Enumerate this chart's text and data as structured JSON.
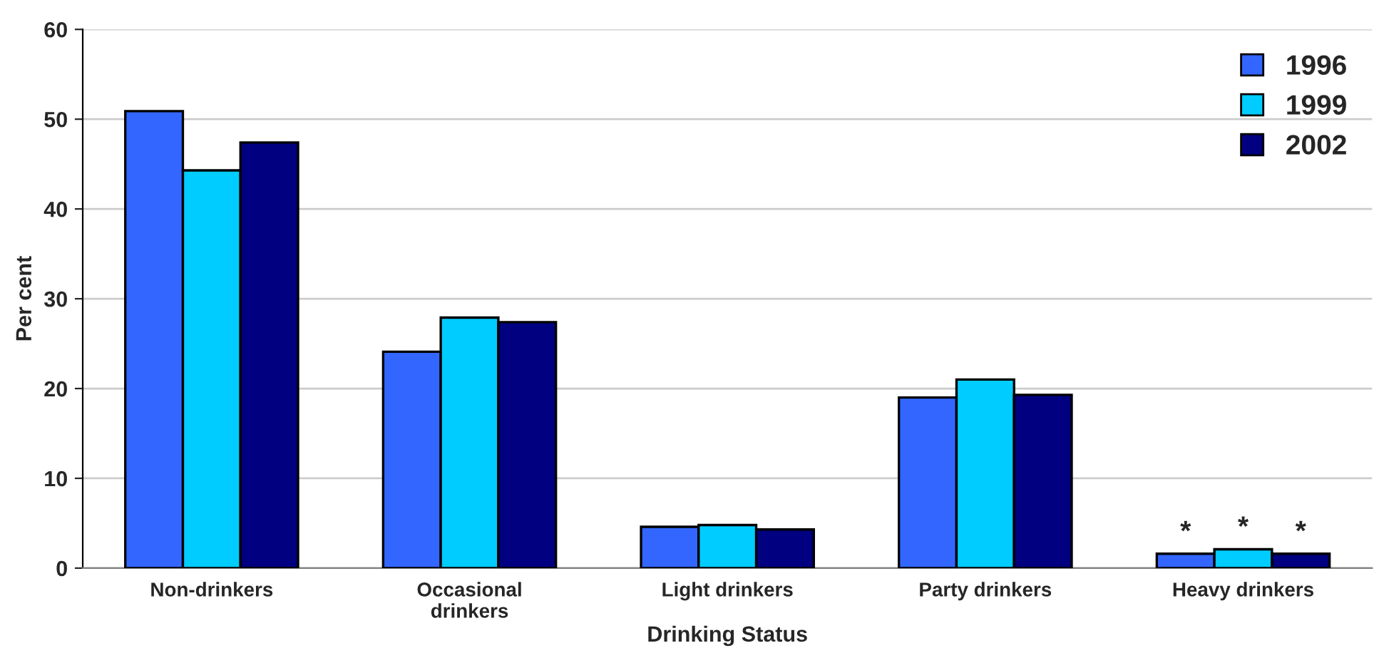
{
  "chart_data": {
    "type": "bar",
    "xlabel": "Drinking Status",
    "ylabel": "Per cent",
    "categories": [
      "Non-drinkers",
      "Occasional\ndrinkers",
      "Light drinkers",
      "Party drinkers",
      "Heavy drinkers"
    ],
    "series": [
      {
        "name": "1996",
        "color": "#3366ff",
        "values": [
          50.9,
          24.1,
          4.6,
          19.0,
          1.6
        ],
        "value_labels": [
          null,
          null,
          null,
          null,
          "*"
        ]
      },
      {
        "name": "1999",
        "color": "#00ccff",
        "values": [
          44.3,
          27.9,
          4.8,
          21.0,
          2.1
        ],
        "value_labels": [
          null,
          null,
          null,
          null,
          "*"
        ]
      },
      {
        "name": "2002",
        "color": "#000080",
        "values": [
          47.4,
          27.4,
          4.3,
          19.3,
          1.6
        ],
        "value_labels": [
          null,
          null,
          null,
          null,
          "*"
        ]
      }
    ],
    "ylim": [
      0,
      60
    ],
    "yticks": [
      0,
      10,
      20,
      30,
      40,
      50,
      60
    ],
    "grid": "y",
    "legend": "top right"
  }
}
